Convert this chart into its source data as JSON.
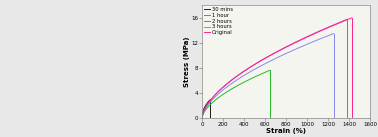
{
  "xlabel": "Strain (%)",
  "ylabel": "Stress (MPa)",
  "xlim": [
    0,
    1600
  ],
  "ylim": [
    0,
    18
  ],
  "xticks": [
    0,
    200,
    400,
    600,
    800,
    1000,
    1200,
    1400,
    1600
  ],
  "yticks": [
    0,
    4,
    8,
    12,
    16
  ],
  "background_color": "#e8e8e8",
  "plot_bg": "#f5f5f0",
  "curves": [
    {
      "label": "30 mins",
      "color": "#1a1a1a",
      "strain_end": 75,
      "stress_end": 2.9,
      "power": 0.45
    },
    {
      "label": "1 hour",
      "color": "#cc44cc",
      "strain_end": 1380,
      "stress_end": 15.8,
      "power": 0.6
    },
    {
      "label": "2 hours",
      "color": "#22bb22",
      "strain_end": 640,
      "stress_end": 7.6,
      "power": 0.6
    },
    {
      "label": "3 hours",
      "color": "#8888ee",
      "strain_end": 1250,
      "stress_end": 13.5,
      "power": 0.6
    },
    {
      "label": "Original",
      "color": "#ff2288",
      "strain_end": 1420,
      "stress_end": 16.0,
      "power": 0.6
    }
  ]
}
